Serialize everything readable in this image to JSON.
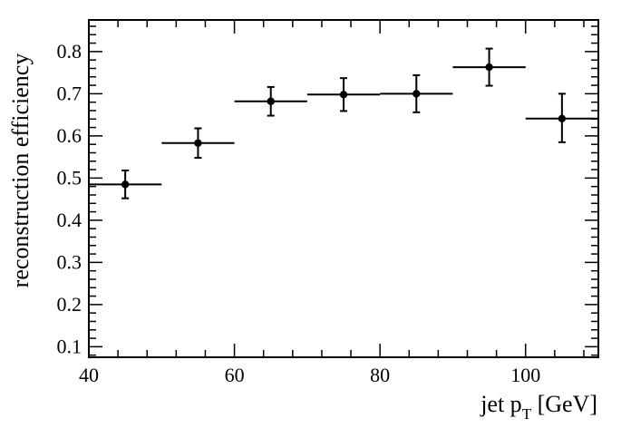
{
  "chart_data": {
    "type": "scatter",
    "title": "",
    "xlabel": {
      "main": "jet p",
      "sub": "T",
      "suffix": " [GeV]"
    },
    "ylabel": "reconstruction efficiency",
    "xlim": [
      40,
      110
    ],
    "ylim": [
      0.075,
      0.875
    ],
    "x_major_ticks": [
      40,
      60,
      80,
      100
    ],
    "x_tick_labels": [
      "40",
      "60",
      "80",
      "100"
    ],
    "y_major_ticks": [
      0.1,
      0.2,
      0.3,
      0.4,
      0.5,
      0.6,
      0.7,
      0.8
    ],
    "y_tick_labels": [
      "0.1",
      "0.2",
      "0.3",
      "0.4",
      "0.5",
      "0.6",
      "0.7",
      "0.8"
    ],
    "grid": false,
    "legend": null,
    "series": [
      {
        "points": [
          {
            "x": 45,
            "x_low": 40,
            "x_high": 50,
            "y": 0.485,
            "y_low": 0.452,
            "y_high": 0.518
          },
          {
            "x": 55,
            "x_low": 50,
            "x_high": 60,
            "y": 0.583,
            "y_low": 0.548,
            "y_high": 0.618
          },
          {
            "x": 65,
            "x_low": 60,
            "x_high": 70,
            "y": 0.682,
            "y_low": 0.648,
            "y_high": 0.716
          },
          {
            "x": 75,
            "x_low": 70,
            "x_high": 80,
            "y": 0.698,
            "y_low": 0.659,
            "y_high": 0.737
          },
          {
            "x": 85,
            "x_low": 80,
            "x_high": 90,
            "y": 0.7,
            "y_low": 0.656,
            "y_high": 0.744
          },
          {
            "x": 95,
            "x_low": 90,
            "x_high": 100,
            "y": 0.763,
            "y_low": 0.719,
            "y_high": 0.807
          },
          {
            "x": 105,
            "x_low": 100,
            "x_high": 110,
            "y": 0.641,
            "y_low": 0.585,
            "y_high": 0.7
          }
        ]
      }
    ]
  }
}
